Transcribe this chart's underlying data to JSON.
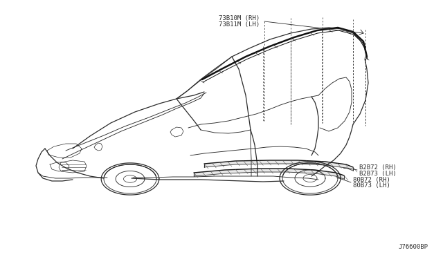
{
  "background_color": "#ffffff",
  "line_color": "#2a2a2a",
  "diagram_id": "J76600BP",
  "label_top_line1": "73B10M (RH)",
  "label_top_line2": "73B11M (LH)",
  "label_mid_top_line1": "B2B72 (RH)",
  "label_mid_top_line2": "B2B73 (LH)",
  "label_mid_bot_line1": "80B72 (RH)",
  "label_mid_bot_line2": "80B73 (LH)",
  "font_size_label": 6.5,
  "font_size_id": 6.5
}
